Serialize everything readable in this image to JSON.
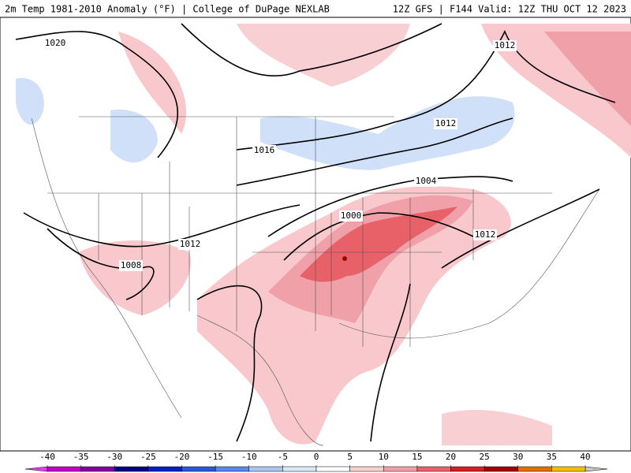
{
  "header": {
    "left": "2m Temp 1981-2010 Anomaly (°F) | College of DuPage NEXLAB",
    "right": "12Z GFS | F144 Valid: 12Z THU OCT 12 2023"
  },
  "map": {
    "isobar_labels": [
      "1020",
      "1012",
      "1016",
      "1012",
      "1004",
      "1000",
      "1012",
      "1008",
      "1012"
    ],
    "colorbar": {
      "ticks": [
        -40,
        -35,
        -30,
        -25,
        -20,
        -15,
        -10,
        -5,
        0,
        5,
        10,
        15,
        20,
        25,
        30,
        35,
        40
      ],
      "colors": [
        "#c000c8",
        "#8000a0",
        "#000080",
        "#0020c0",
        "#2858d8",
        "#5888e8",
        "#a8c8f0",
        "#d8e8fa",
        "#ffffff",
        "#f8d0d0",
        "#f0a0a8",
        "#e86068",
        "#d02020",
        "#a00000",
        "#e07000",
        "#f0c000"
      ],
      "low_color": "#e040e8",
      "high_color": "#c8c8c8"
    }
  }
}
